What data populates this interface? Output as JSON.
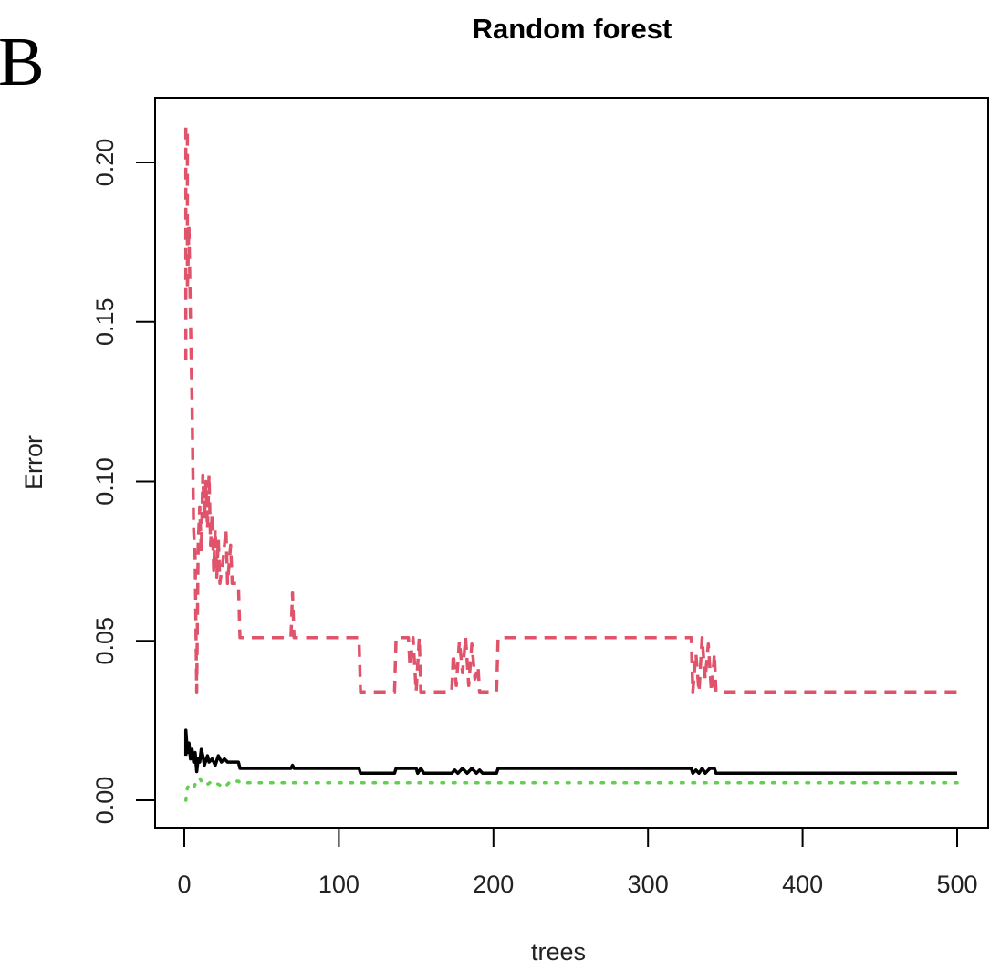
{
  "panel_label": "B",
  "chart_data": {
    "type": "line",
    "title": "Random forest",
    "xlabel": "trees",
    "ylabel": "Error",
    "xlim": [
      0,
      500
    ],
    "ylim": [
      0,
      0.21
    ],
    "x_ticks": [
      0,
      100,
      200,
      300,
      400,
      500
    ],
    "x_tick_labels": [
      "0",
      "100",
      "200",
      "300",
      "400",
      "500"
    ],
    "y_ticks": [
      0.0,
      0.05,
      0.1,
      0.15,
      0.2
    ],
    "y_tick_labels": [
      "0.00",
      "0.05",
      "0.10",
      "0.15",
      "0.20"
    ],
    "grid": false,
    "series": [
      {
        "color": "#df536b",
        "dash": "dashed",
        "points": [
          [
            1,
            0.138
          ],
          [
            1,
            0.211
          ],
          [
            2,
            0.211
          ],
          [
            2,
            0.16
          ],
          [
            3,
            0.18
          ],
          [
            4,
            0.15
          ],
          [
            5,
            0.125
          ],
          [
            6,
            0.085
          ],
          [
            7,
            0.076
          ],
          [
            8,
            0.034
          ],
          [
            9,
            0.08
          ],
          [
            10,
            0.092
          ],
          [
            11,
            0.078
          ],
          [
            12,
            0.102
          ],
          [
            13,
            0.088
          ],
          [
            14,
            0.1
          ],
          [
            15,
            0.085
          ],
          [
            16,
            0.102
          ],
          [
            17,
            0.08
          ],
          [
            18,
            0.09
          ],
          [
            19,
            0.072
          ],
          [
            20,
            0.085
          ],
          [
            21,
            0.07
          ],
          [
            22,
            0.082
          ],
          [
            23,
            0.068
          ],
          [
            25,
            0.075
          ],
          [
            27,
            0.085
          ],
          [
            28,
            0.068
          ],
          [
            30,
            0.08
          ],
          [
            31,
            0.068
          ],
          [
            35,
            0.068
          ],
          [
            36,
            0.051
          ],
          [
            69,
            0.051
          ],
          [
            70,
            0.065
          ],
          [
            71,
            0.051
          ],
          [
            113,
            0.051
          ],
          [
            114,
            0.034
          ],
          [
            136,
            0.034
          ],
          [
            137,
            0.051
          ],
          [
            145,
            0.051
          ],
          [
            146,
            0.042
          ],
          [
            148,
            0.051
          ],
          [
            150,
            0.034
          ],
          [
            152,
            0.051
          ],
          [
            153,
            0.034
          ],
          [
            173,
            0.034
          ],
          [
            174,
            0.046
          ],
          [
            176,
            0.036
          ],
          [
            178,
            0.05
          ],
          [
            180,
            0.04
          ],
          [
            182,
            0.051
          ],
          [
            184,
            0.036
          ],
          [
            186,
            0.049
          ],
          [
            188,
            0.038
          ],
          [
            190,
            0.042
          ],
          [
            191,
            0.034
          ],
          [
            202,
            0.034
          ],
          [
            203,
            0.051
          ],
          [
            328,
            0.051
          ],
          [
            329,
            0.034
          ],
          [
            331,
            0.046
          ],
          [
            333,
            0.034
          ],
          [
            335,
            0.051
          ],
          [
            337,
            0.038
          ],
          [
            339,
            0.049
          ],
          [
            341,
            0.034
          ],
          [
            343,
            0.046
          ],
          [
            344,
            0.034
          ],
          [
            500,
            0.034
          ]
        ]
      },
      {
        "color": "#000000",
        "dash": "solid",
        "points": [
          [
            1,
            0.014
          ],
          [
            1,
            0.022
          ],
          [
            2,
            0.015
          ],
          [
            3,
            0.018
          ],
          [
            4,
            0.013
          ],
          [
            5,
            0.016
          ],
          [
            6,
            0.012
          ],
          [
            7,
            0.015
          ],
          [
            8,
            0.009
          ],
          [
            9,
            0.013
          ],
          [
            10,
            0.012
          ],
          [
            11,
            0.016
          ],
          [
            12,
            0.014
          ],
          [
            13,
            0.011
          ],
          [
            15,
            0.014
          ],
          [
            16,
            0.012
          ],
          [
            18,
            0.013
          ],
          [
            20,
            0.011
          ],
          [
            22,
            0.014
          ],
          [
            24,
            0.012
          ],
          [
            26,
            0.013
          ],
          [
            28,
            0.012
          ],
          [
            35,
            0.012
          ],
          [
            36,
            0.01
          ],
          [
            69,
            0.01
          ],
          [
            70,
            0.011
          ],
          [
            71,
            0.01
          ],
          [
            113,
            0.01
          ],
          [
            114,
            0.0085
          ],
          [
            136,
            0.0085
          ],
          [
            137,
            0.01
          ],
          [
            150,
            0.01
          ],
          [
            151,
            0.0085
          ],
          [
            153,
            0.01
          ],
          [
            155,
            0.0085
          ],
          [
            173,
            0.0085
          ],
          [
            175,
            0.0095
          ],
          [
            177,
            0.0085
          ],
          [
            180,
            0.01
          ],
          [
            183,
            0.0085
          ],
          [
            186,
            0.01
          ],
          [
            189,
            0.0085
          ],
          [
            191,
            0.0095
          ],
          [
            193,
            0.0085
          ],
          [
            202,
            0.0085
          ],
          [
            203,
            0.01
          ],
          [
            328,
            0.01
          ],
          [
            329,
            0.0085
          ],
          [
            331,
            0.0095
          ],
          [
            333,
            0.0085
          ],
          [
            335,
            0.01
          ],
          [
            337,
            0.0085
          ],
          [
            340,
            0.01
          ],
          [
            343,
            0.01
          ],
          [
            344,
            0.0085
          ],
          [
            500,
            0.0085
          ]
        ]
      },
      {
        "color": "#61d04f",
        "dash": "dotted",
        "points": [
          [
            1,
            0.0
          ],
          [
            2,
            0.004
          ],
          [
            4,
            0.005
          ],
          [
            6,
            0.004
          ],
          [
            8,
            0.006
          ],
          [
            10,
            0.007
          ],
          [
            12,
            0.005
          ],
          [
            15,
            0.005
          ],
          [
            18,
            0.006
          ],
          [
            22,
            0.005
          ],
          [
            26,
            0.004
          ],
          [
            30,
            0.006
          ],
          [
            35,
            0.006
          ],
          [
            36,
            0.0055
          ],
          [
            500,
            0.0055
          ]
        ]
      }
    ]
  }
}
